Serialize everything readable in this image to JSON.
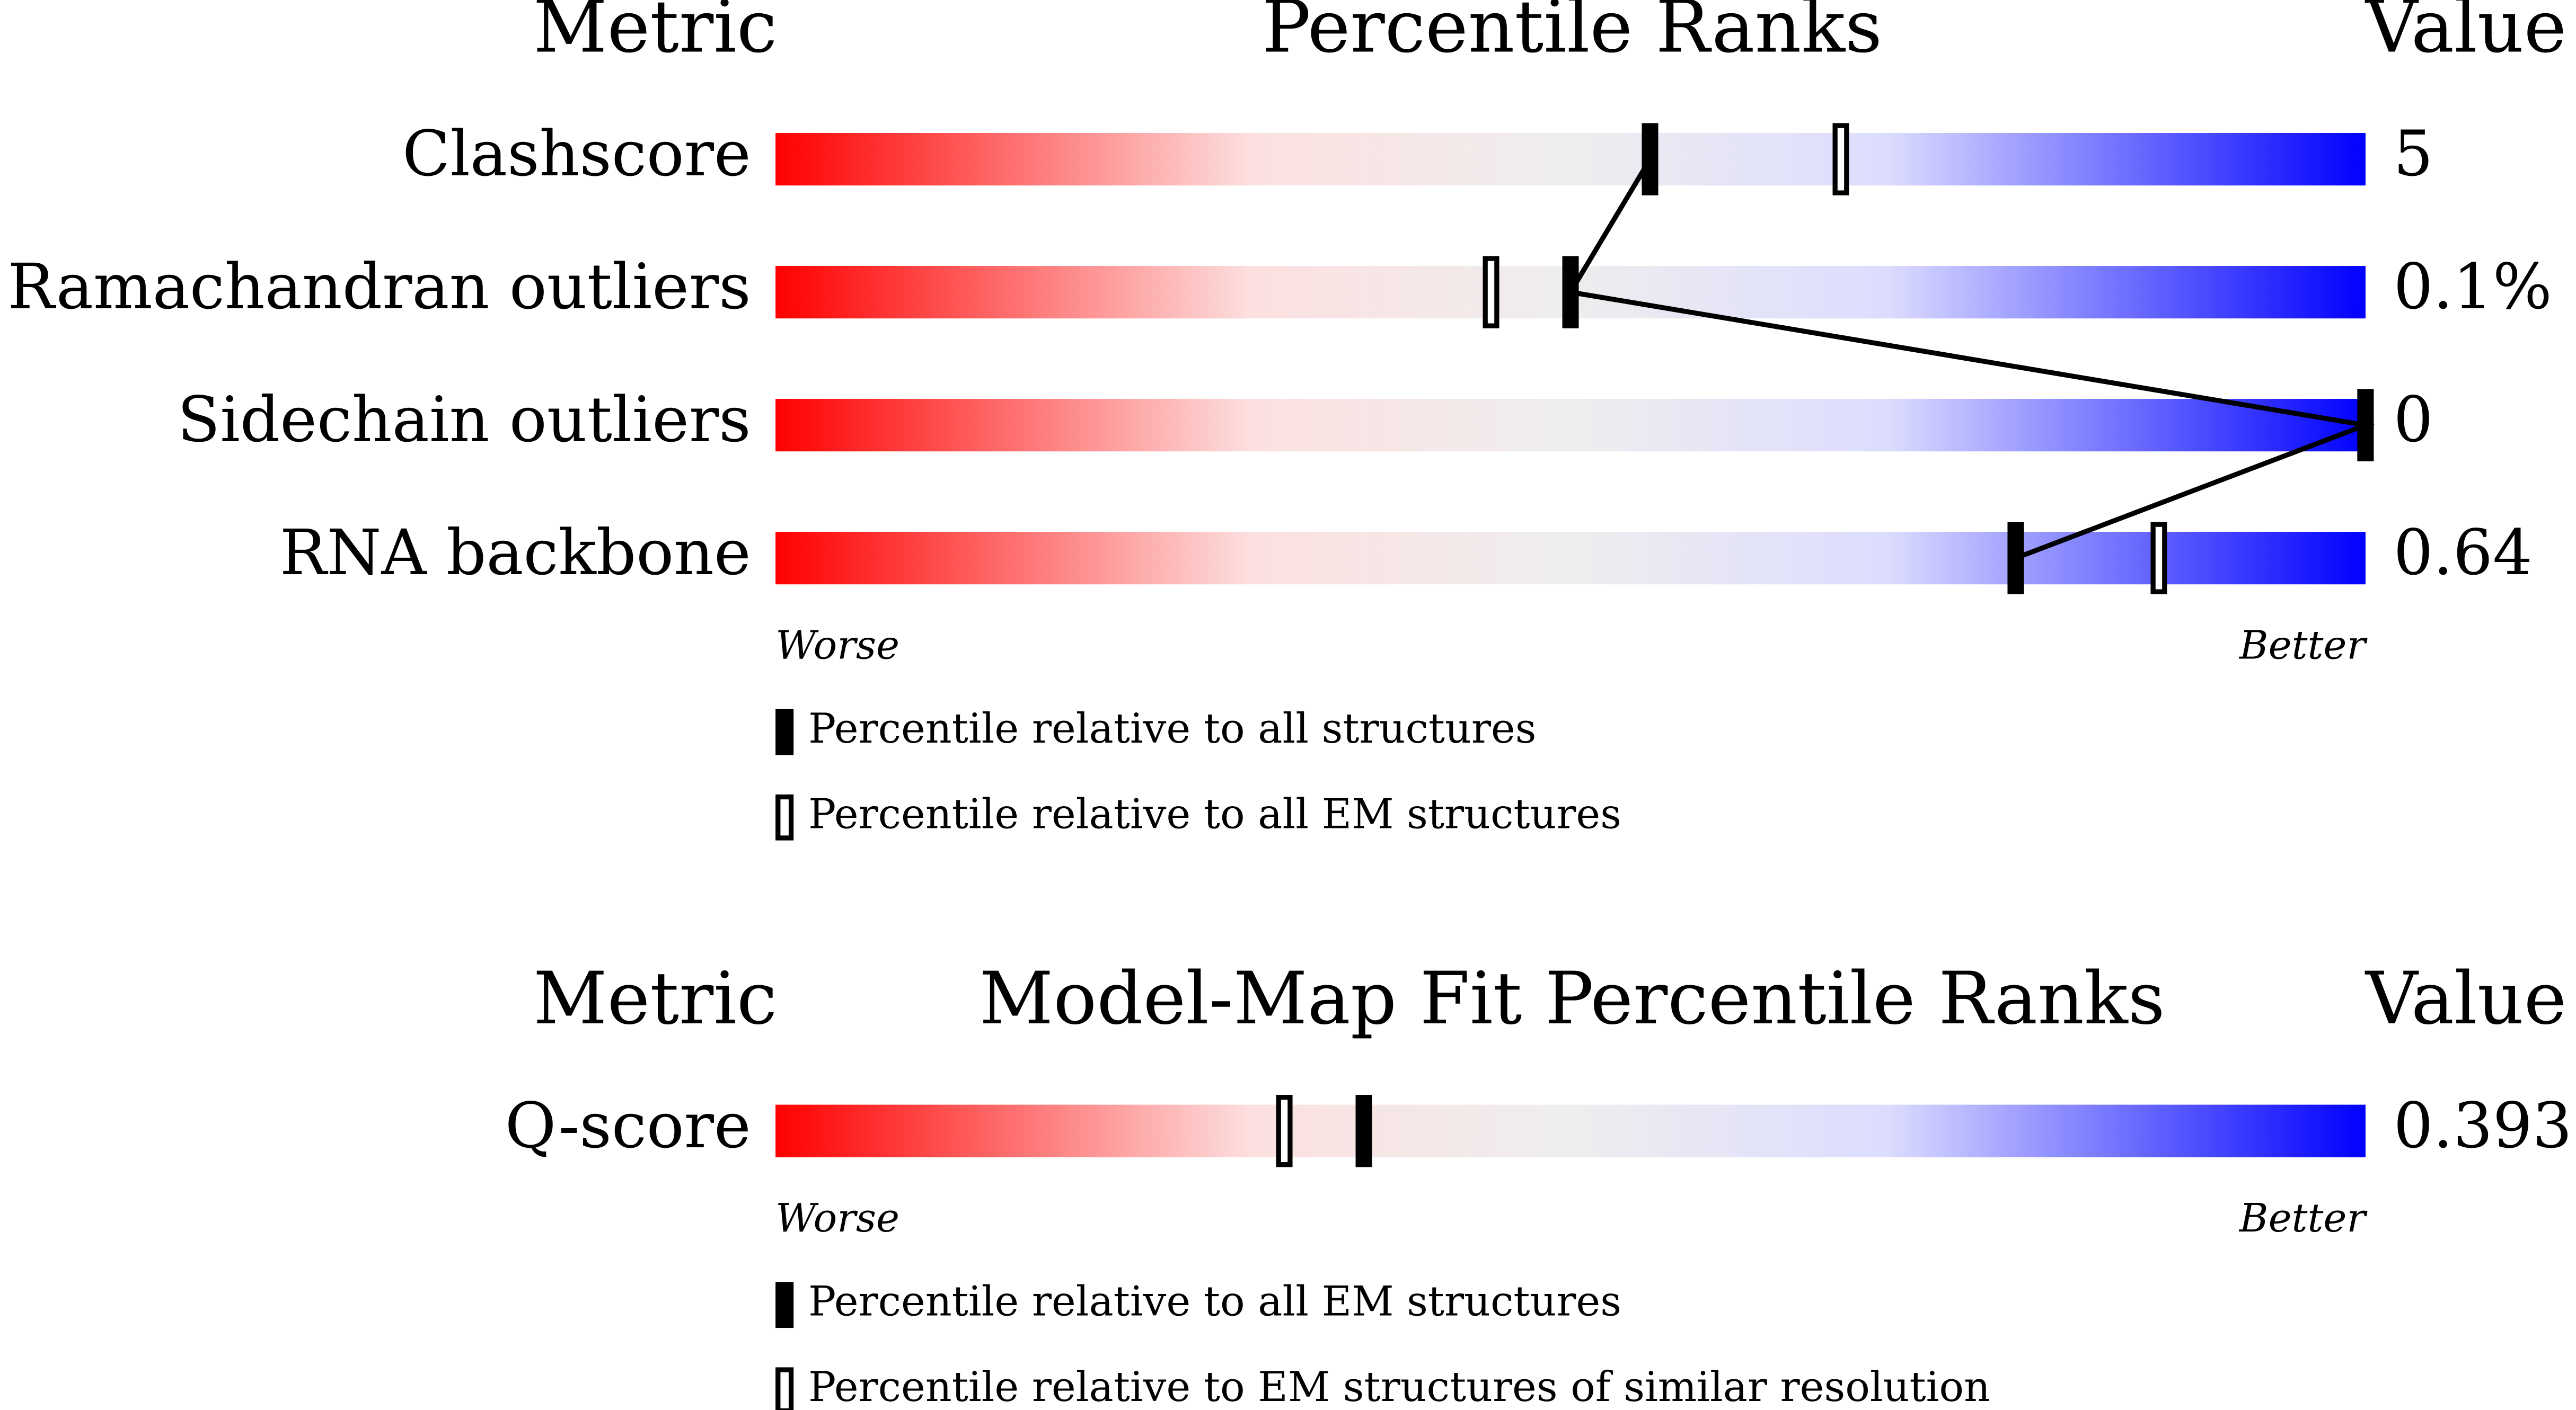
{
  "chart_data": [
    {
      "type": "percentile-slider",
      "title": "Percentile Ranks",
      "metric_header": "Metric",
      "value_header": "Value",
      "categories": [
        "Clashscore",
        "Ramachandran outliers",
        "Sidechain outliers",
        "RNA backbone"
      ],
      "metric_values": [
        "5",
        "0.1%",
        "0",
        "0.64"
      ],
      "xlim": [
        0,
        100
      ],
      "xlabels": [
        "Worse",
        "Better"
      ],
      "connect_series": 0,
      "series": [
        {
          "name": "Percentile relative to all structures",
          "style": "filled",
          "color": "#000000",
          "values": [
            55,
            50,
            100,
            78
          ]
        },
        {
          "name": "Percentile relative to all EM structures",
          "style": "hollow",
          "color": "#000000",
          "values": [
            67,
            45,
            100,
            87
          ]
        }
      ]
    },
    {
      "type": "percentile-slider",
      "title": "Model-Map Fit Percentile Ranks",
      "metric_header": "Metric",
      "value_header": "Value",
      "categories": [
        "Q-score"
      ],
      "metric_values": [
        "0.393"
      ],
      "xlim": [
        0,
        100
      ],
      "xlabels": [
        "Worse",
        "Better"
      ],
      "connect_series": null,
      "series": [
        {
          "name": "Percentile relative to all EM structures",
          "style": "filled",
          "color": "#000000",
          "values": [
            37
          ]
        },
        {
          "name": "Percentile relative to EM structures of similar resolution",
          "style": "hollow",
          "color": "#000000",
          "values": [
            32
          ]
        }
      ]
    }
  ]
}
